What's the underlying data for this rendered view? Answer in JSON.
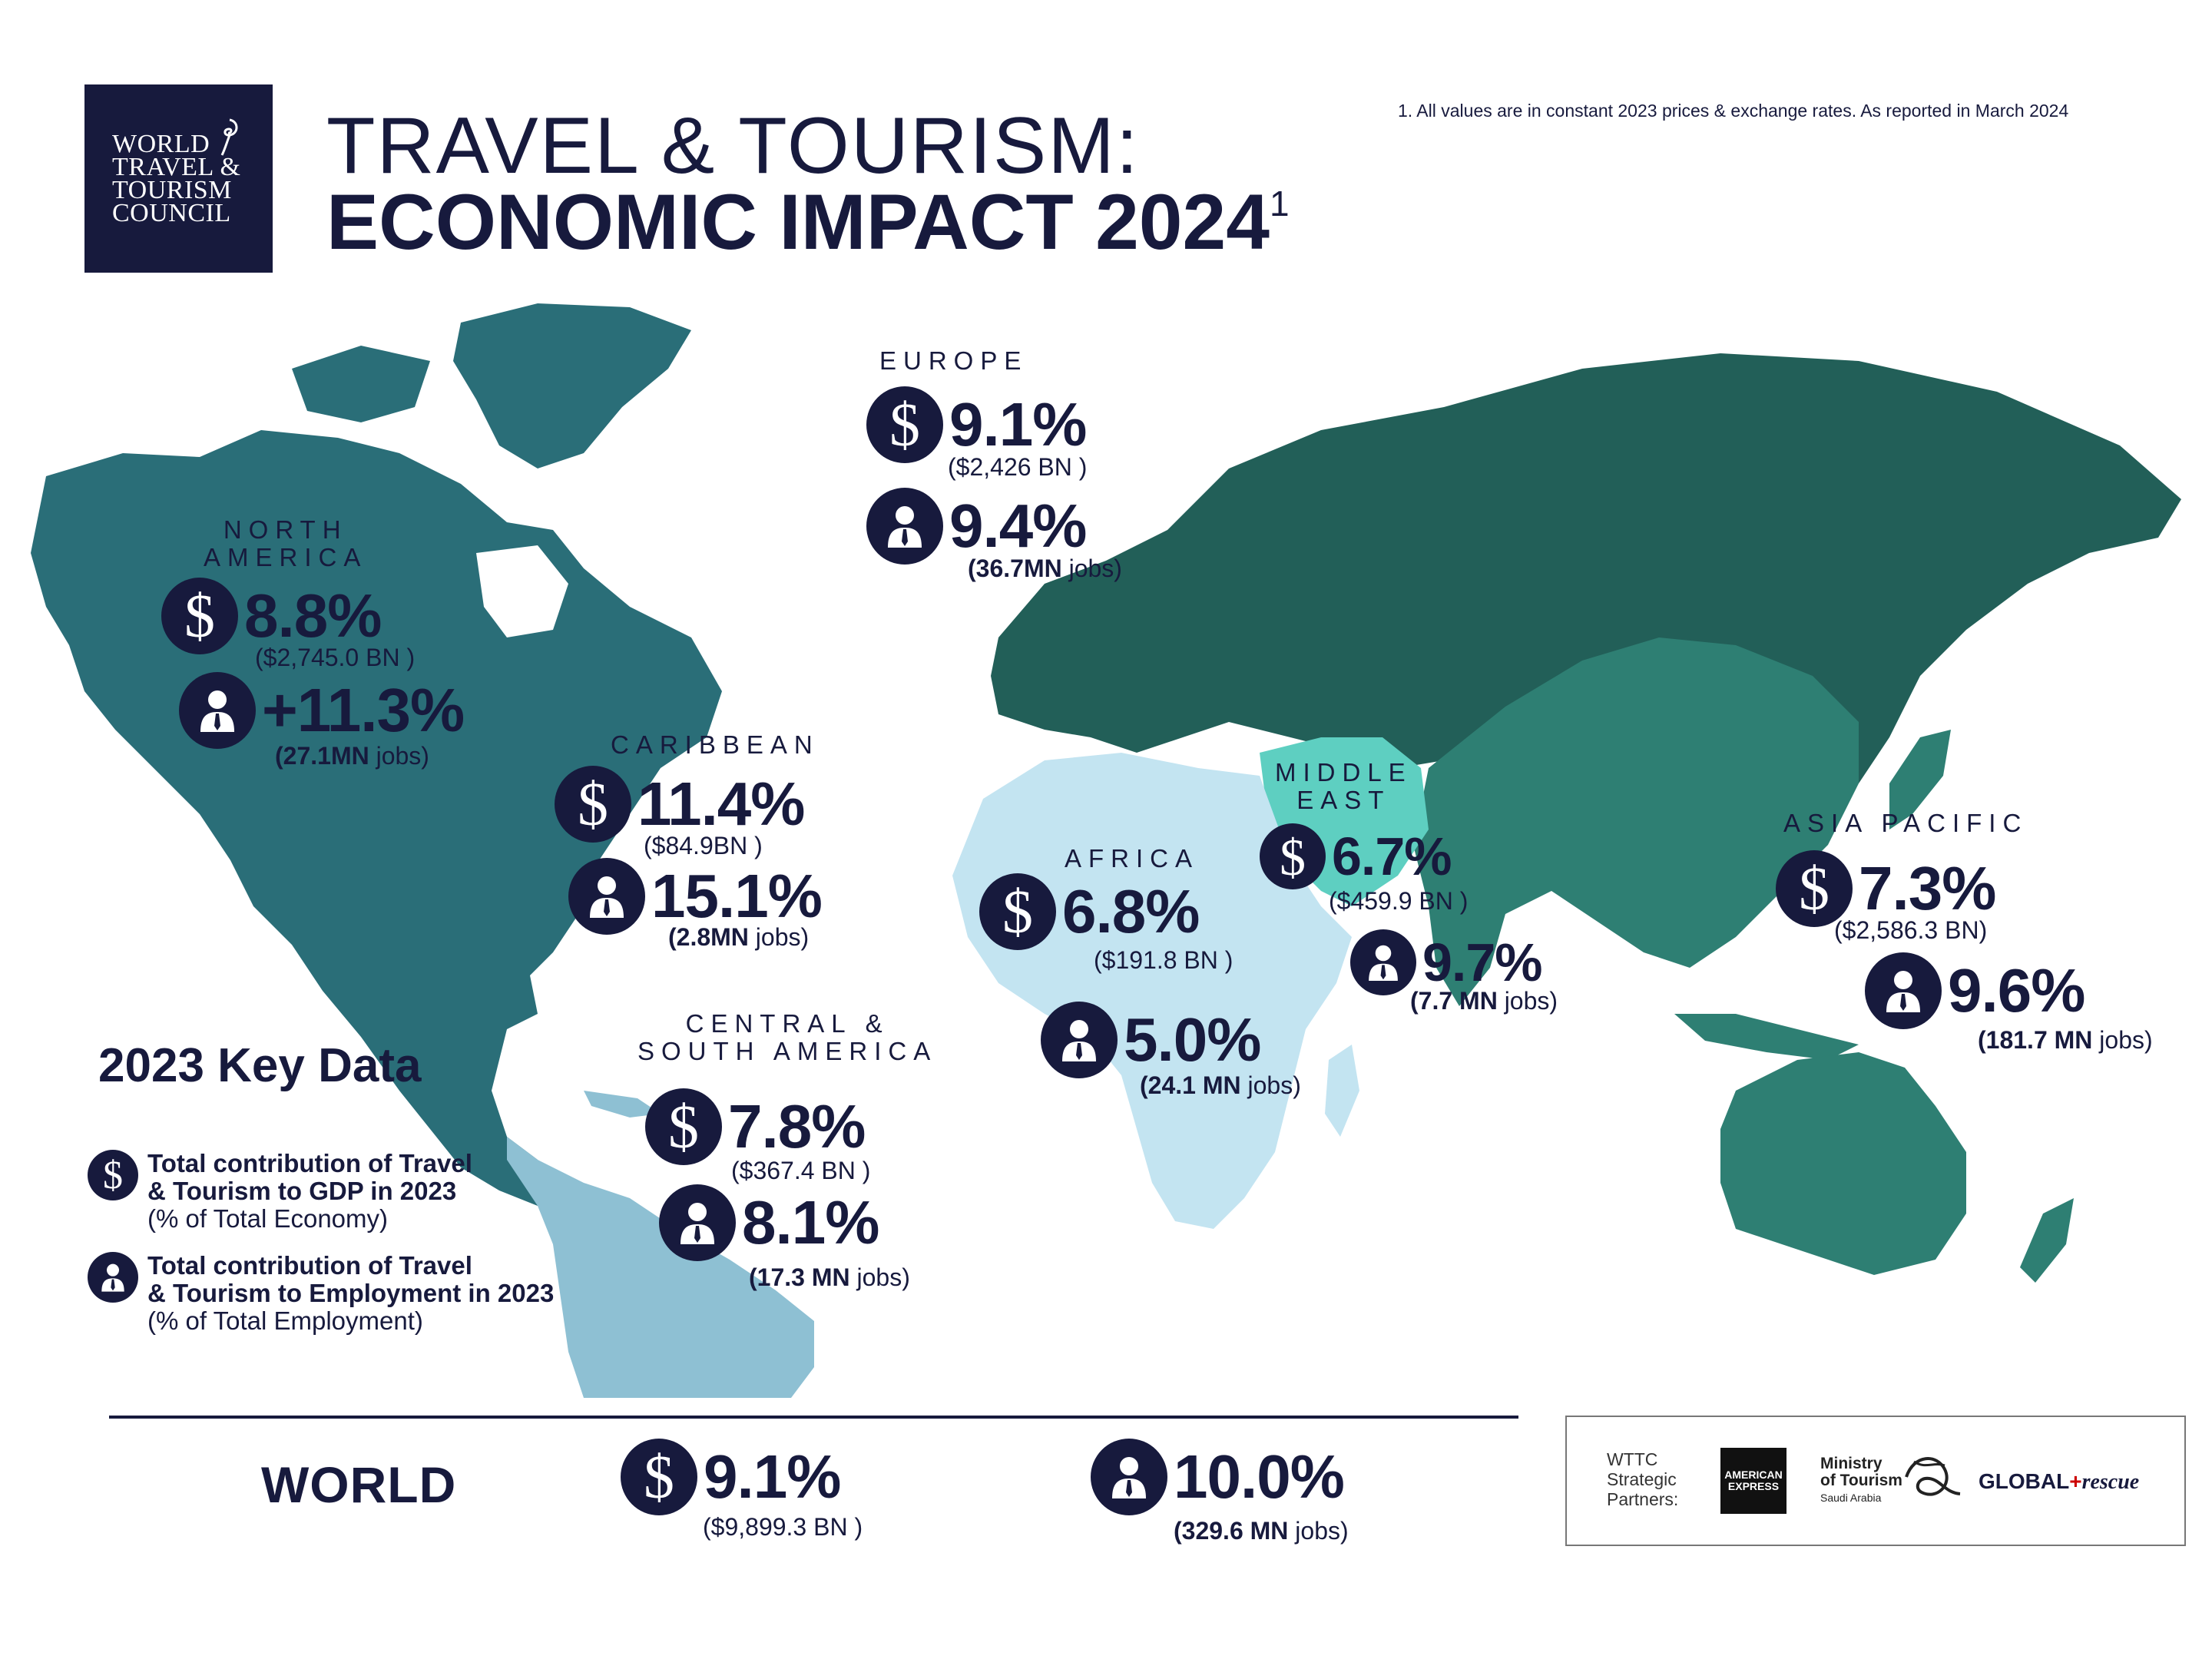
{
  "header": {
    "logo_lines": [
      "WORLD",
      "TRAVEL &",
      "TOURISM",
      "COUNCIL"
    ],
    "title_line1": "TRAVEL & TOURISM:",
    "title_line2": "ECONOMIC IMPACT 2024",
    "title_sup": "1",
    "footnote": "1. All values are in constant 2023 prices & exchange rates. As reported in March 2024"
  },
  "colors": {
    "navy": "#171a3d",
    "north_america": "#2a6e78",
    "central_south_america": "#8ec0d3",
    "europe_asia": "#225f58",
    "asia_pacific": "#2e7f73",
    "africa": "#c3e4f1",
    "middle_east": "#5ecfc1",
    "oceania": "#2e7f73"
  },
  "icons": {
    "gdp": "dollar-icon",
    "employment": "person-icon"
  },
  "regions": {
    "europe": {
      "name": "EUROPE",
      "gdp_pct": "9.1%",
      "gdp_value": "($2,426 BN )",
      "emp_pct": "9.4%",
      "emp_value_bold": "(36.7MN",
      "emp_value_rest": " jobs)"
    },
    "north_america": {
      "name_line1": "NORTH",
      "name_line2": "AMERICA",
      "gdp_pct": "8.8%",
      "gdp_value": "($2,745.0 BN )",
      "emp_pct": "+11.3%",
      "emp_value_bold": "(27.1MN",
      "emp_value_rest": " jobs)"
    },
    "caribbean": {
      "name": "CARIBBEAN",
      "gdp_pct": "11.4%",
      "gdp_value": "($84.9BN )",
      "emp_pct": "15.1%",
      "emp_value_bold": "(2.8MN",
      "emp_value_rest": " jobs)"
    },
    "middle_east": {
      "name_line1": "MIDDLE",
      "name_line2": "EAST",
      "gdp_pct": "6.7%",
      "gdp_value": "($459.9 BN )",
      "emp_pct": "9.7%",
      "emp_value_bold": "(7.7 MN",
      "emp_value_rest": " jobs)"
    },
    "africa": {
      "name": "AFRICA",
      "gdp_pct": "6.8%",
      "gdp_value": "($191.8 BN )",
      "emp_pct": "5.0%",
      "emp_value_bold": "(24.1 MN",
      "emp_value_rest": " jobs)"
    },
    "asia_pacific": {
      "name": "ASIA PACIFIC",
      "gdp_pct": "7.3%",
      "gdp_value": "($2,586.3 BN)",
      "emp_pct": "9.6%",
      "emp_value_bold": "(181.7 MN",
      "emp_value_rest": " jobs)"
    },
    "central_south_america": {
      "name_line1": "CENTRAL &",
      "name_line2": "SOUTH AMERICA",
      "gdp_pct": "7.8%",
      "gdp_value": "($367.4 BN )",
      "emp_pct": "8.1%",
      "emp_value_bold": "(17.3 MN",
      "emp_value_rest": " jobs)"
    }
  },
  "key_data": {
    "title": "2023 Key Data",
    "gdp_line1": "Total contribution of Travel",
    "gdp_line2": "& Tourism to GDP in 2023",
    "gdp_line3": "(% of Total Economy)",
    "emp_line1": "Total contribution of Travel",
    "emp_line2": "& Tourism to Employment in 2023",
    "emp_line3": "(% of Total Employment)"
  },
  "world": {
    "label": "WORLD",
    "gdp_pct": "9.1%",
    "gdp_value": "($9,899.3 BN )",
    "emp_pct": "10.0%",
    "emp_value_bold": "(329.6 MN",
    "emp_value_rest": " jobs)"
  },
  "partners": {
    "label_line1": "WTTC",
    "label_line2": "Strategic",
    "label_line3": "Partners:",
    "amex_line1": "AMERICAN",
    "amex_line2": "EXPRESS",
    "mot_line1": "Ministry",
    "mot_line2": "of Tourism",
    "mot_line3": "Saudi Arabia",
    "global_rescue_a": "GLOBAL",
    "global_rescue_b": "rescue"
  }
}
